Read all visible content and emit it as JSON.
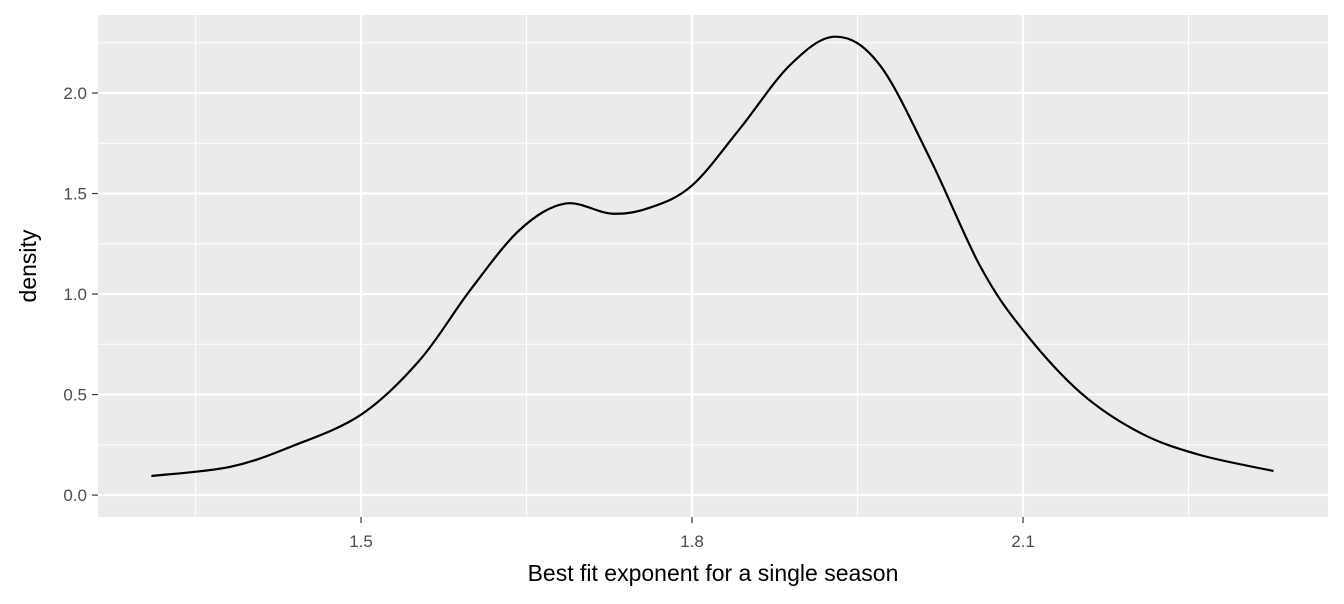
{
  "chart_data": {
    "type": "line",
    "x_label": "Best fit exponent for a single season",
    "y_label": "density",
    "series": [
      {
        "color": "#000000",
        "x": [
          1.31,
          1.381,
          1.436,
          1.5,
          1.553,
          1.599,
          1.644,
          1.685,
          1.727,
          1.762,
          1.8,
          1.843,
          1.889,
          1.93,
          1.97,
          2.016,
          2.061,
          2.1,
          2.152,
          2.206,
          2.26,
          2.327
        ],
        "values": [
          0.095,
          0.14,
          0.24,
          0.4,
          0.67,
          1.02,
          1.32,
          1.45,
          1.4,
          1.43,
          1.54,
          1.82,
          2.14,
          2.28,
          2.14,
          1.67,
          1.14,
          0.82,
          0.51,
          0.31,
          0.2,
          0.12
        ]
      }
    ],
    "xlim": [
      1.2616,
      2.3764
    ],
    "xticks": [
      1.5,
      1.8,
      2.1
    ],
    "x_minor_breaks": [
      1.35,
      1.65,
      1.95,
      2.25
    ],
    "ylim": [
      -0.109,
      2.388
    ],
    "yticks": [
      {
        "value": 0,
        "label": "0.0"
      },
      0.5,
      {
        "value": 1,
        "label": "1.0"
      },
      1.5,
      {
        "value": 2,
        "label": "2.0"
      }
    ],
    "y_minor_breaks": [
      0.25,
      0.75,
      1.25,
      1.75,
      2.25
    ],
    "grid": true,
    "panel_color": "#ebebeb"
  }
}
